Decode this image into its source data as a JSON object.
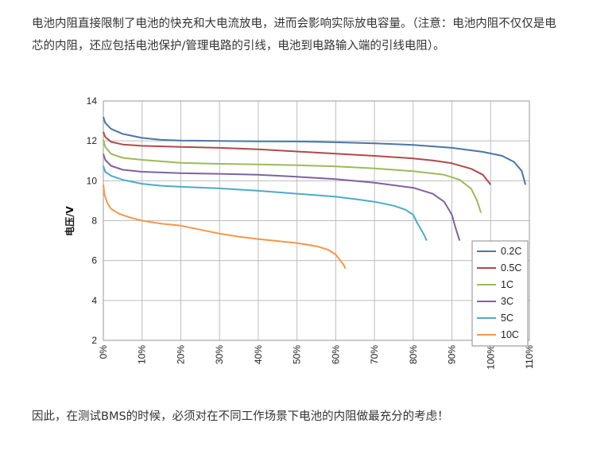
{
  "article": {
    "intro": "电池内阻直接限制了电池的快充和大电流放电，进而会影响实际放电容量。（注意：电池内阻不仅仅是电芯的内阻，还应包括电池保护/管理电路的引线，电池到电路输入端的引线电阻）。",
    "conclusion": "因此，在测试BMS的时候，必须对在不同工作场景下电池的内阻做最充分的考虑！"
  },
  "chart_data": {
    "type": "line",
    "title": "",
    "xlabel": "",
    "ylabel": "电压/V",
    "xlim": [
      0,
      110
    ],
    "ylim": [
      2,
      14
    ],
    "x_ticks": [
      "0%",
      "10%",
      "20%",
      "30%",
      "40%",
      "50%",
      "60%",
      "70%",
      "80%",
      "90%",
      "100%",
      "110%"
    ],
    "y_ticks": [
      "2",
      "4",
      "6",
      "8",
      "10",
      "12",
      "14"
    ],
    "grid": true,
    "legend_position": "bottom-right",
    "series": [
      {
        "name": "0.2C",
        "color": "#4a76a8",
        "points": [
          [
            0,
            13.2
          ],
          [
            0.5,
            12.9
          ],
          [
            2,
            12.6
          ],
          [
            5,
            12.35
          ],
          [
            10,
            12.15
          ],
          [
            15,
            12.05
          ],
          [
            20,
            12.02
          ],
          [
            30,
            12.0
          ],
          [
            40,
            11.98
          ],
          [
            50,
            11.97
          ],
          [
            60,
            11.93
          ],
          [
            70,
            11.88
          ],
          [
            80,
            11.8
          ],
          [
            90,
            11.65
          ],
          [
            98,
            11.45
          ],
          [
            103,
            11.25
          ],
          [
            106,
            10.95
          ],
          [
            108,
            10.5
          ],
          [
            109,
            9.8
          ]
        ]
      },
      {
        "name": "0.5C",
        "color": "#b04a48",
        "points": [
          [
            0,
            12.45
          ],
          [
            0.5,
            12.2
          ],
          [
            2,
            11.95
          ],
          [
            5,
            11.82
          ],
          [
            10,
            11.75
          ],
          [
            20,
            11.7
          ],
          [
            30,
            11.65
          ],
          [
            40,
            11.58
          ],
          [
            50,
            11.47
          ],
          [
            60,
            11.36
          ],
          [
            70,
            11.25
          ],
          [
            80,
            11.12
          ],
          [
            85,
            11.02
          ],
          [
            90,
            10.88
          ],
          [
            95,
            10.6
          ],
          [
            98,
            10.3
          ],
          [
            100,
            9.8
          ]
        ]
      },
      {
        "name": "1C",
        "color": "#9bbb59",
        "points": [
          [
            0,
            12.05
          ],
          [
            0.5,
            11.7
          ],
          [
            2,
            11.35
          ],
          [
            5,
            11.15
          ],
          [
            10,
            11.05
          ],
          [
            20,
            10.9
          ],
          [
            30,
            10.85
          ],
          [
            40,
            10.82
          ],
          [
            50,
            10.78
          ],
          [
            60,
            10.72
          ],
          [
            70,
            10.62
          ],
          [
            80,
            10.48
          ],
          [
            88,
            10.3
          ],
          [
            92,
            10.05
          ],
          [
            95,
            9.6
          ],
          [
            96.5,
            9.0
          ],
          [
            97.5,
            8.4
          ]
        ]
      },
      {
        "name": "3C",
        "color": "#7d62a3",
        "points": [
          [
            0,
            11.35
          ],
          [
            0.5,
            11.05
          ],
          [
            2,
            10.75
          ],
          [
            5,
            10.55
          ],
          [
            10,
            10.45
          ],
          [
            20,
            10.38
          ],
          [
            30,
            10.35
          ],
          [
            40,
            10.3
          ],
          [
            50,
            10.2
          ],
          [
            60,
            10.08
          ],
          [
            70,
            9.9
          ],
          [
            80,
            9.65
          ],
          [
            85,
            9.35
          ],
          [
            88,
            8.95
          ],
          [
            90,
            8.3
          ],
          [
            91,
            7.6
          ],
          [
            92,
            7.0
          ]
        ]
      },
      {
        "name": "5C",
        "color": "#4bacc6",
        "points": [
          [
            0,
            10.75
          ],
          [
            0.5,
            10.45
          ],
          [
            2,
            10.25
          ],
          [
            5,
            10.05
          ],
          [
            10,
            9.85
          ],
          [
            15,
            9.75
          ],
          [
            20,
            9.7
          ],
          [
            30,
            9.62
          ],
          [
            40,
            9.5
          ],
          [
            50,
            9.35
          ],
          [
            60,
            9.2
          ],
          [
            65,
            9.08
          ],
          [
            70,
            8.95
          ],
          [
            75,
            8.75
          ],
          [
            78,
            8.55
          ],
          [
            80,
            8.3
          ],
          [
            81,
            7.9
          ],
          [
            82.5,
            7.4
          ],
          [
            83.5,
            7.0
          ]
        ]
      },
      {
        "name": "10C",
        "color": "#f79646",
        "points": [
          [
            0,
            9.8
          ],
          [
            0.3,
            9.3
          ],
          [
            1,
            8.9
          ],
          [
            2,
            8.6
          ],
          [
            4,
            8.35
          ],
          [
            7,
            8.15
          ],
          [
            10,
            8.0
          ],
          [
            15,
            7.85
          ],
          [
            20,
            7.75
          ],
          [
            25,
            7.55
          ],
          [
            30,
            7.35
          ],
          [
            35,
            7.2
          ],
          [
            40,
            7.08
          ],
          [
            45,
            6.98
          ],
          [
            50,
            6.88
          ],
          [
            55,
            6.72
          ],
          [
            58,
            6.55
          ],
          [
            60,
            6.3
          ],
          [
            61,
            6.05
          ],
          [
            62,
            5.8
          ],
          [
            62.5,
            5.6
          ]
        ]
      }
    ]
  }
}
